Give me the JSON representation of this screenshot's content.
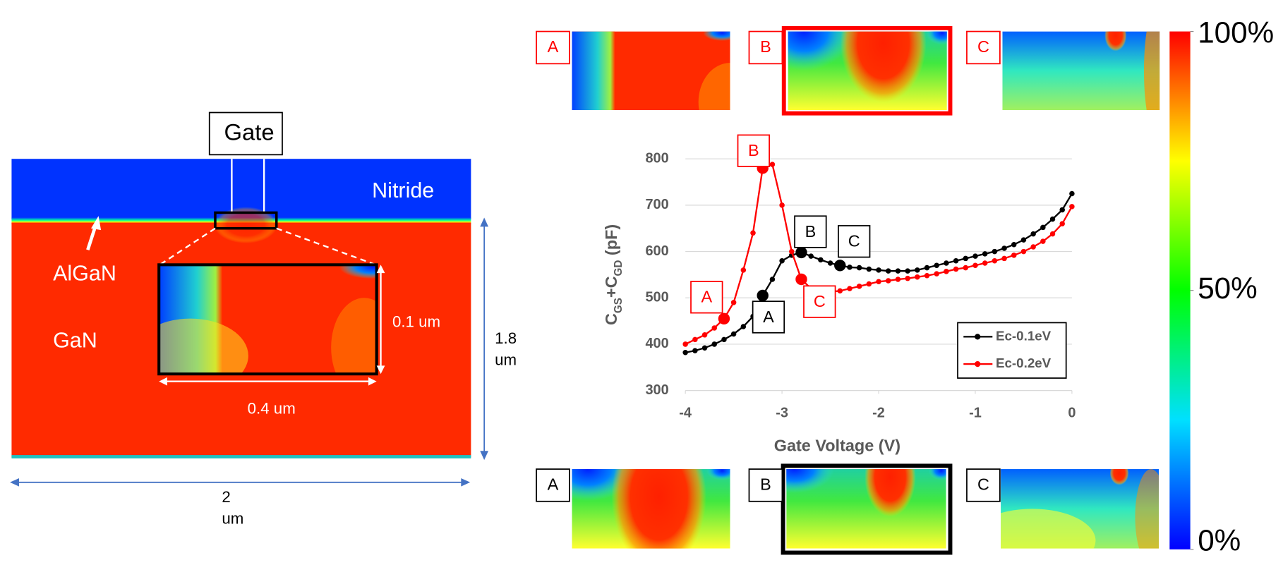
{
  "device": {
    "gate": "Gate",
    "nitride": "Nitride",
    "algan": "AlGaN",
    "gan": "GaN",
    "inset_height": "0.1 um",
    "inset_width": "0.4 um",
    "height": "1.8 um",
    "width": "2 um"
  },
  "snapshots": {
    "top": [
      "A",
      "B",
      "C"
    ],
    "bottom": [
      "A",
      "B",
      "C"
    ]
  },
  "colorbar": {
    "lim": [
      0,
      100
    ],
    "ticks": [
      {
        "value": 100,
        "label": "100%"
      },
      {
        "value": 50,
        "label": "50%"
      },
      {
        "value": 0,
        "label": "0%"
      }
    ]
  },
  "chart_data": {
    "type": "line",
    "xlabel": "Gate Voltage (V)",
    "ylabel": [
      {
        "text": "C",
        "sub": false
      },
      {
        "text": "GS",
        "sub": true
      },
      {
        "text": "+C",
        "sub": false
      },
      {
        "text": "GD",
        "sub": true
      },
      {
        "text": " (pF)",
        "sub": false
      }
    ],
    "x": [
      -4.0,
      -3.9,
      -3.8,
      -3.7,
      -3.6,
      -3.5,
      -3.4,
      -3.3,
      -3.2,
      -3.1,
      -3.0,
      -2.9,
      -2.8,
      -2.7,
      -2.6,
      -2.5,
      -2.4,
      -2.3,
      -2.2,
      -2.1,
      -2.0,
      -1.9,
      -1.8,
      -1.7,
      -1.6,
      -1.5,
      -1.4,
      -1.3,
      -1.2,
      -1.1,
      -1.0,
      -0.9,
      -0.8,
      -0.7,
      -0.6,
      -0.5,
      -0.4,
      -0.3,
      -0.2,
      -0.1,
      0.0
    ],
    "series": [
      {
        "name": "Ec-0.1eV",
        "color": "#000000",
        "values": [
          382,
          386,
          392,
          400,
          410,
          422,
          438,
          460,
          505,
          540,
          580,
          592,
          598,
          590,
          582,
          575,
          570,
          566,
          565,
          562,
          560,
          558,
          558,
          558,
          560,
          565,
          570,
          575,
          580,
          585,
          590,
          595,
          600,
          607,
          615,
          625,
          638,
          652,
          670,
          690,
          725
        ],
        "highlights": [
          {
            "x": -3.2,
            "label": "A"
          },
          {
            "x": -2.8,
            "label": "B"
          },
          {
            "x": -2.4,
            "label": "C"
          }
        ]
      },
      {
        "name": "Ec-0.2eV",
        "color": "#ff0000",
        "values": [
          400,
          410,
          420,
          435,
          455,
          490,
          560,
          640,
          780,
          788,
          700,
          600,
          540,
          520,
          512,
          513,
          515,
          520,
          525,
          530,
          535,
          537,
          540,
          542,
          545,
          548,
          552,
          557,
          562,
          565,
          570,
          575,
          580,
          585,
          592,
          600,
          610,
          622,
          638,
          660,
          697
        ],
        "highlights": [
          {
            "x": -3.6,
            "label": "A"
          },
          {
            "x": -3.2,
            "label": "B"
          },
          {
            "x": -2.8,
            "label": "C"
          }
        ]
      }
    ],
    "xlim": [
      -4,
      0
    ],
    "xticks": [
      -4,
      -3,
      -2,
      -1,
      0
    ],
    "ylim": [
      300,
      800
    ],
    "yticks": [
      300,
      400,
      500,
      600,
      700,
      800
    ],
    "grid": true,
    "legend": "lower right"
  }
}
